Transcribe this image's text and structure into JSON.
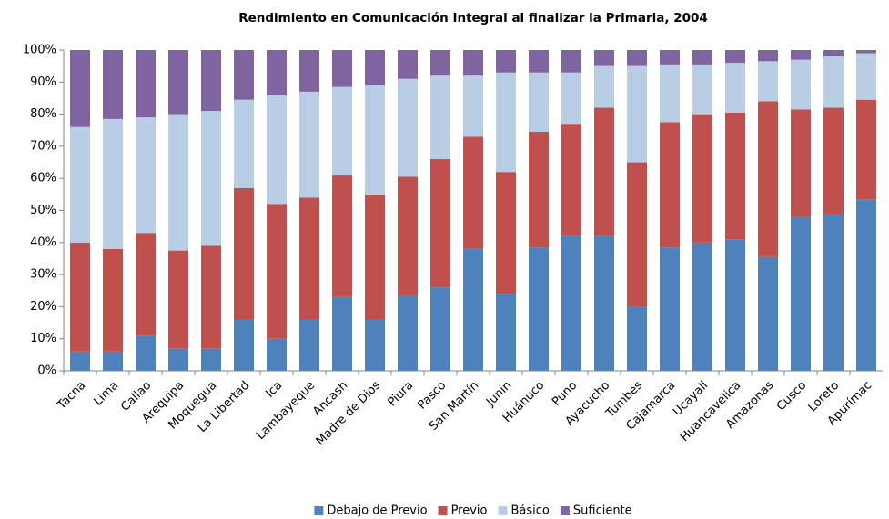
{
  "chart_data": {
    "type": "stacked_bar",
    "title": "Rendimiento en Comunicación Integral al finalizar la Primaria, 2004",
    "categories": [
      "Tacna",
      "Lima",
      "Callao",
      "Arequipa",
      "Moquegua",
      "La Libertad",
      "Ica",
      "Lambayeque",
      "Ancash",
      "Madre de Dios",
      "Piura",
      "Pasco",
      "San Martín",
      "Junín",
      "Huánuco",
      "Puno",
      "Ayacucho",
      "Tumbes",
      "Cajamarca",
      "Ucayali",
      "Huancavelica",
      "Amazonas",
      "Cusco",
      "Loreto",
      "Apurímac"
    ],
    "series": [
      {
        "name": "Debajo de Previo",
        "color": "#4f81bd",
        "values": [
          6,
          6,
          11,
          7,
          7,
          16,
          10,
          16,
          23,
          16,
          23.5,
          26,
          38,
          24,
          38.5,
          42,
          42,
          20,
          38.5,
          40,
          41,
          35.5,
          48,
          49,
          53.5
        ]
      },
      {
        "name": "Previo",
        "color": "#c0504d",
        "values": [
          34,
          32,
          32,
          30.5,
          32,
          41,
          42,
          38,
          38,
          39,
          37,
          40,
          35,
          38,
          36,
          35,
          40,
          45,
          39,
          40,
          39.5,
          48.5,
          33.5,
          33,
          31
        ]
      },
      {
        "name": "Básico",
        "color": "#b9cde5",
        "values": [
          36,
          40.5,
          36,
          42.5,
          42,
          27.5,
          34,
          33,
          27.5,
          34,
          30.5,
          26,
          19,
          31,
          18.5,
          16,
          13,
          30,
          18,
          15.5,
          15.5,
          12.5,
          15.5,
          16,
          14.5
        ]
      },
      {
        "name": "Suficiente",
        "color": "#8064a2",
        "values": [
          24,
          21.5,
          21,
          20,
          19,
          15.5,
          14,
          13,
          11.5,
          11,
          9,
          8,
          8,
          7,
          7,
          7,
          5,
          5,
          4.5,
          4.5,
          4,
          3.5,
          3,
          2,
          1
        ]
      }
    ],
    "ylim": [
      0,
      100
    ],
    "yticks": [
      {
        "value": 0,
        "label": "0%"
      },
      {
        "value": 10,
        "label": "10%"
      },
      {
        "value": 20,
        "label": "20%"
      },
      {
        "value": 30,
        "label": "30%"
      },
      {
        "value": 40,
        "label": "40%"
      },
      {
        "value": 50,
        "label": "50%"
      },
      {
        "value": 60,
        "label": "60%"
      },
      {
        "value": 70,
        "label": "70%"
      },
      {
        "value": 80,
        "label": "80%"
      },
      {
        "value": 90,
        "label": "90%"
      },
      {
        "value": 100,
        "label": "100%"
      }
    ],
    "grid": false,
    "legend": "bottom"
  }
}
